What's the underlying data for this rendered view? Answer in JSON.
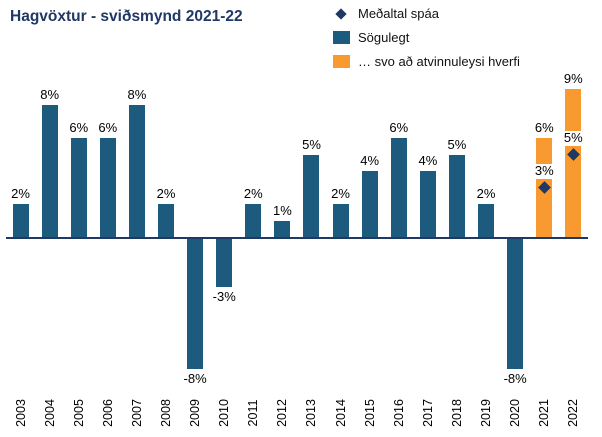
{
  "title": "Hagvöxtur - sviðsmynd 2021-22",
  "colors": {
    "title_navy": "#1F3864",
    "historical_blue": "#1C5A7E",
    "scenario_orange": "#F89A30",
    "forecast_diamond": "#1F3864",
    "axis_line": "#1F3864"
  },
  "legend": {
    "items": [
      {
        "label": "Meðaltal spáa",
        "marker": "diamond",
        "color": "#1F3864"
      },
      {
        "label": "Sögulegt",
        "marker": "square",
        "color": "#1C5A7E"
      },
      {
        "label": "… svo að atvinnuleysi hverfi",
        "marker": "square",
        "color": "#F89A30"
      }
    ]
  },
  "chart_data": {
    "type": "bar",
    "title": "Hagvöxtur - sviðsmynd 2021-22",
    "categories": [
      "2003",
      "2004",
      "2005",
      "2006",
      "2007",
      "2008",
      "2009",
      "2010",
      "2011",
      "2012",
      "2013",
      "2014",
      "2015",
      "2016",
      "2017",
      "2018",
      "2019",
      "2020",
      "2021",
      "2022"
    ],
    "series": [
      {
        "name": "Sögulegt",
        "type": "bar",
        "color": "#1C5A7E",
        "values": [
          2,
          8,
          6,
          6,
          8,
          2,
          -8,
          -3,
          2,
          1,
          5,
          2,
          4,
          6,
          4,
          5,
          2,
          -8,
          null,
          null
        ]
      },
      {
        "name": "… svo að atvinnuleysi hverfi",
        "type": "bar",
        "color": "#F89A30",
        "values": [
          null,
          null,
          null,
          null,
          null,
          null,
          null,
          null,
          null,
          null,
          null,
          null,
          null,
          null,
          null,
          null,
          null,
          null,
          6,
          9
        ]
      },
      {
        "name": "Meðaltal spáa",
        "type": "scatter",
        "marker": "diamond",
        "color": "#1F3864",
        "values": [
          null,
          null,
          null,
          null,
          null,
          null,
          null,
          null,
          null,
          null,
          null,
          null,
          null,
          null,
          null,
          null,
          null,
          null,
          3,
          5
        ]
      }
    ],
    "value_label_format": "{v}%",
    "ylim": [
      -10,
      10
    ],
    "baseline": 0,
    "grid": false,
    "legend_position": "top-right",
    "x_tick_rotation": 90
  }
}
